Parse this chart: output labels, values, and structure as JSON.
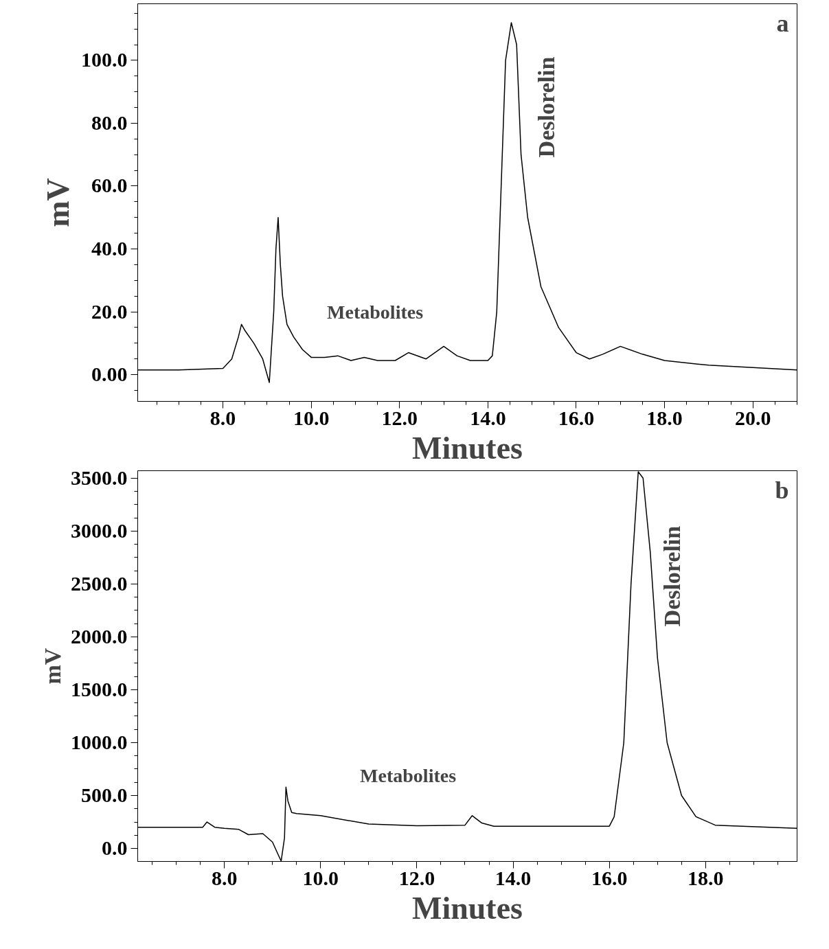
{
  "chart_data": [
    {
      "type": "line",
      "xlabel": "Minutes",
      "ylabel": "mV",
      "title": "a",
      "x": [
        6.07,
        7.0,
        8.0,
        8.2,
        8.35,
        8.42,
        8.5,
        8.7,
        8.9,
        9.05,
        9.15,
        9.2,
        9.25,
        9.3,
        9.35,
        9.45,
        9.6,
        9.8,
        10.0,
        10.3,
        10.6,
        10.9,
        11.2,
        11.5,
        11.9,
        12.2,
        12.6,
        13.0,
        13.3,
        13.6,
        14.0,
        14.1,
        14.2,
        14.3,
        14.4,
        14.53,
        14.65,
        14.75,
        14.9,
        15.2,
        15.6,
        16.0,
        16.3,
        16.6,
        17.0,
        17.5,
        18.0,
        19.0,
        21.0
      ],
      "series": [
        {
          "color": "#000000",
          "values": [
            1.5,
            1.5,
            2,
            5,
            12,
            16,
            14,
            10,
            5,
            -2.5,
            20,
            40,
            50,
            35,
            25,
            16,
            12,
            8,
            5.5,
            5.5,
            6,
            4.5,
            5.5,
            4.5,
            4.5,
            7,
            5,
            9,
            6,
            4.5,
            4.5,
            6,
            20,
            60,
            100,
            112,
            105,
            70,
            50,
            28,
            15,
            7,
            5,
            6.5,
            9,
            6.5,
            4.5,
            3,
            1.5
          ]
        }
      ],
      "xlim": [
        6.07,
        21.0
      ],
      "ylim": [
        -8.5,
        118
      ],
      "xticks": [
        {
          "value": 8,
          "label": "8.0"
        },
        {
          "value": 10,
          "label": "10.0"
        },
        {
          "value": 12,
          "label": "12.0"
        },
        {
          "value": 14,
          "label": "14.0"
        },
        {
          "value": 16,
          "label": "16.0"
        },
        {
          "value": 18,
          "label": "18.0"
        },
        {
          "value": 20,
          "label": "20.0"
        }
      ],
      "yticks": [
        {
          "value": 0,
          "label": "0.00"
        },
        {
          "value": 20,
          "label": "20.0"
        },
        {
          "value": 40,
          "label": "40.0"
        },
        {
          "value": 60,
          "label": "60.0"
        },
        {
          "value": 80,
          "label": "80.0"
        },
        {
          "value": 100,
          "label": "100.0"
        }
      ],
      "grid": false,
      "annotations": [
        "Metabolites",
        "Deslorelin"
      ]
    },
    {
      "type": "line",
      "xlabel": "Minutes",
      "ylabel": "mV",
      "title": "b",
      "x": [
        6.2,
        7.55,
        7.64,
        7.8,
        8.0,
        8.3,
        8.5,
        8.8,
        9.0,
        9.1,
        9.18,
        9.25,
        9.28,
        9.32,
        9.4,
        9.5,
        10.0,
        11.0,
        12.0,
        13.0,
        13.15,
        13.35,
        13.6,
        16.0,
        16.1,
        16.3,
        16.45,
        16.6,
        16.7,
        16.85,
        17.0,
        17.2,
        17.5,
        17.8,
        18.2,
        19.9
      ],
      "series": [
        {
          "color": "#000000",
          "values": [
            200,
            200,
            250,
            200,
            190,
            180,
            130,
            140,
            60,
            -40,
            -120,
            100,
            580,
            450,
            340,
            330,
            310,
            230,
            215,
            220,
            310,
            240,
            210,
            210,
            300,
            1000,
            2500,
            3560,
            3500,
            2800,
            1800,
            1000,
            500,
            300,
            220,
            190
          ]
        }
      ],
      "xlim": [
        6.2,
        19.9
      ],
      "ylim": [
        -123,
        3570
      ],
      "xticks": [
        {
          "value": 8,
          "label": "8.0"
        },
        {
          "value": 10,
          "label": "10.0"
        },
        {
          "value": 12,
          "label": "12.0"
        },
        {
          "value": 14,
          "label": "14.0"
        },
        {
          "value": 16,
          "label": "16.0"
        },
        {
          "value": 18,
          "label": "18.0"
        }
      ],
      "yticks": [
        {
          "value": 0,
          "label": "0.0"
        },
        {
          "value": 500,
          "label": "500.0"
        },
        {
          "value": 1000,
          "label": "1000.0"
        },
        {
          "value": 1500,
          "label": "1500.0"
        },
        {
          "value": 2000,
          "label": "2000.0"
        },
        {
          "value": 2500,
          "label": "2500.0"
        },
        {
          "value": 3000,
          "label": "3000.0"
        },
        {
          "value": 3500,
          "label": "3500.0"
        }
      ],
      "grid": false,
      "annotations": [
        "Metabolites",
        "Deslorelin"
      ]
    }
  ]
}
